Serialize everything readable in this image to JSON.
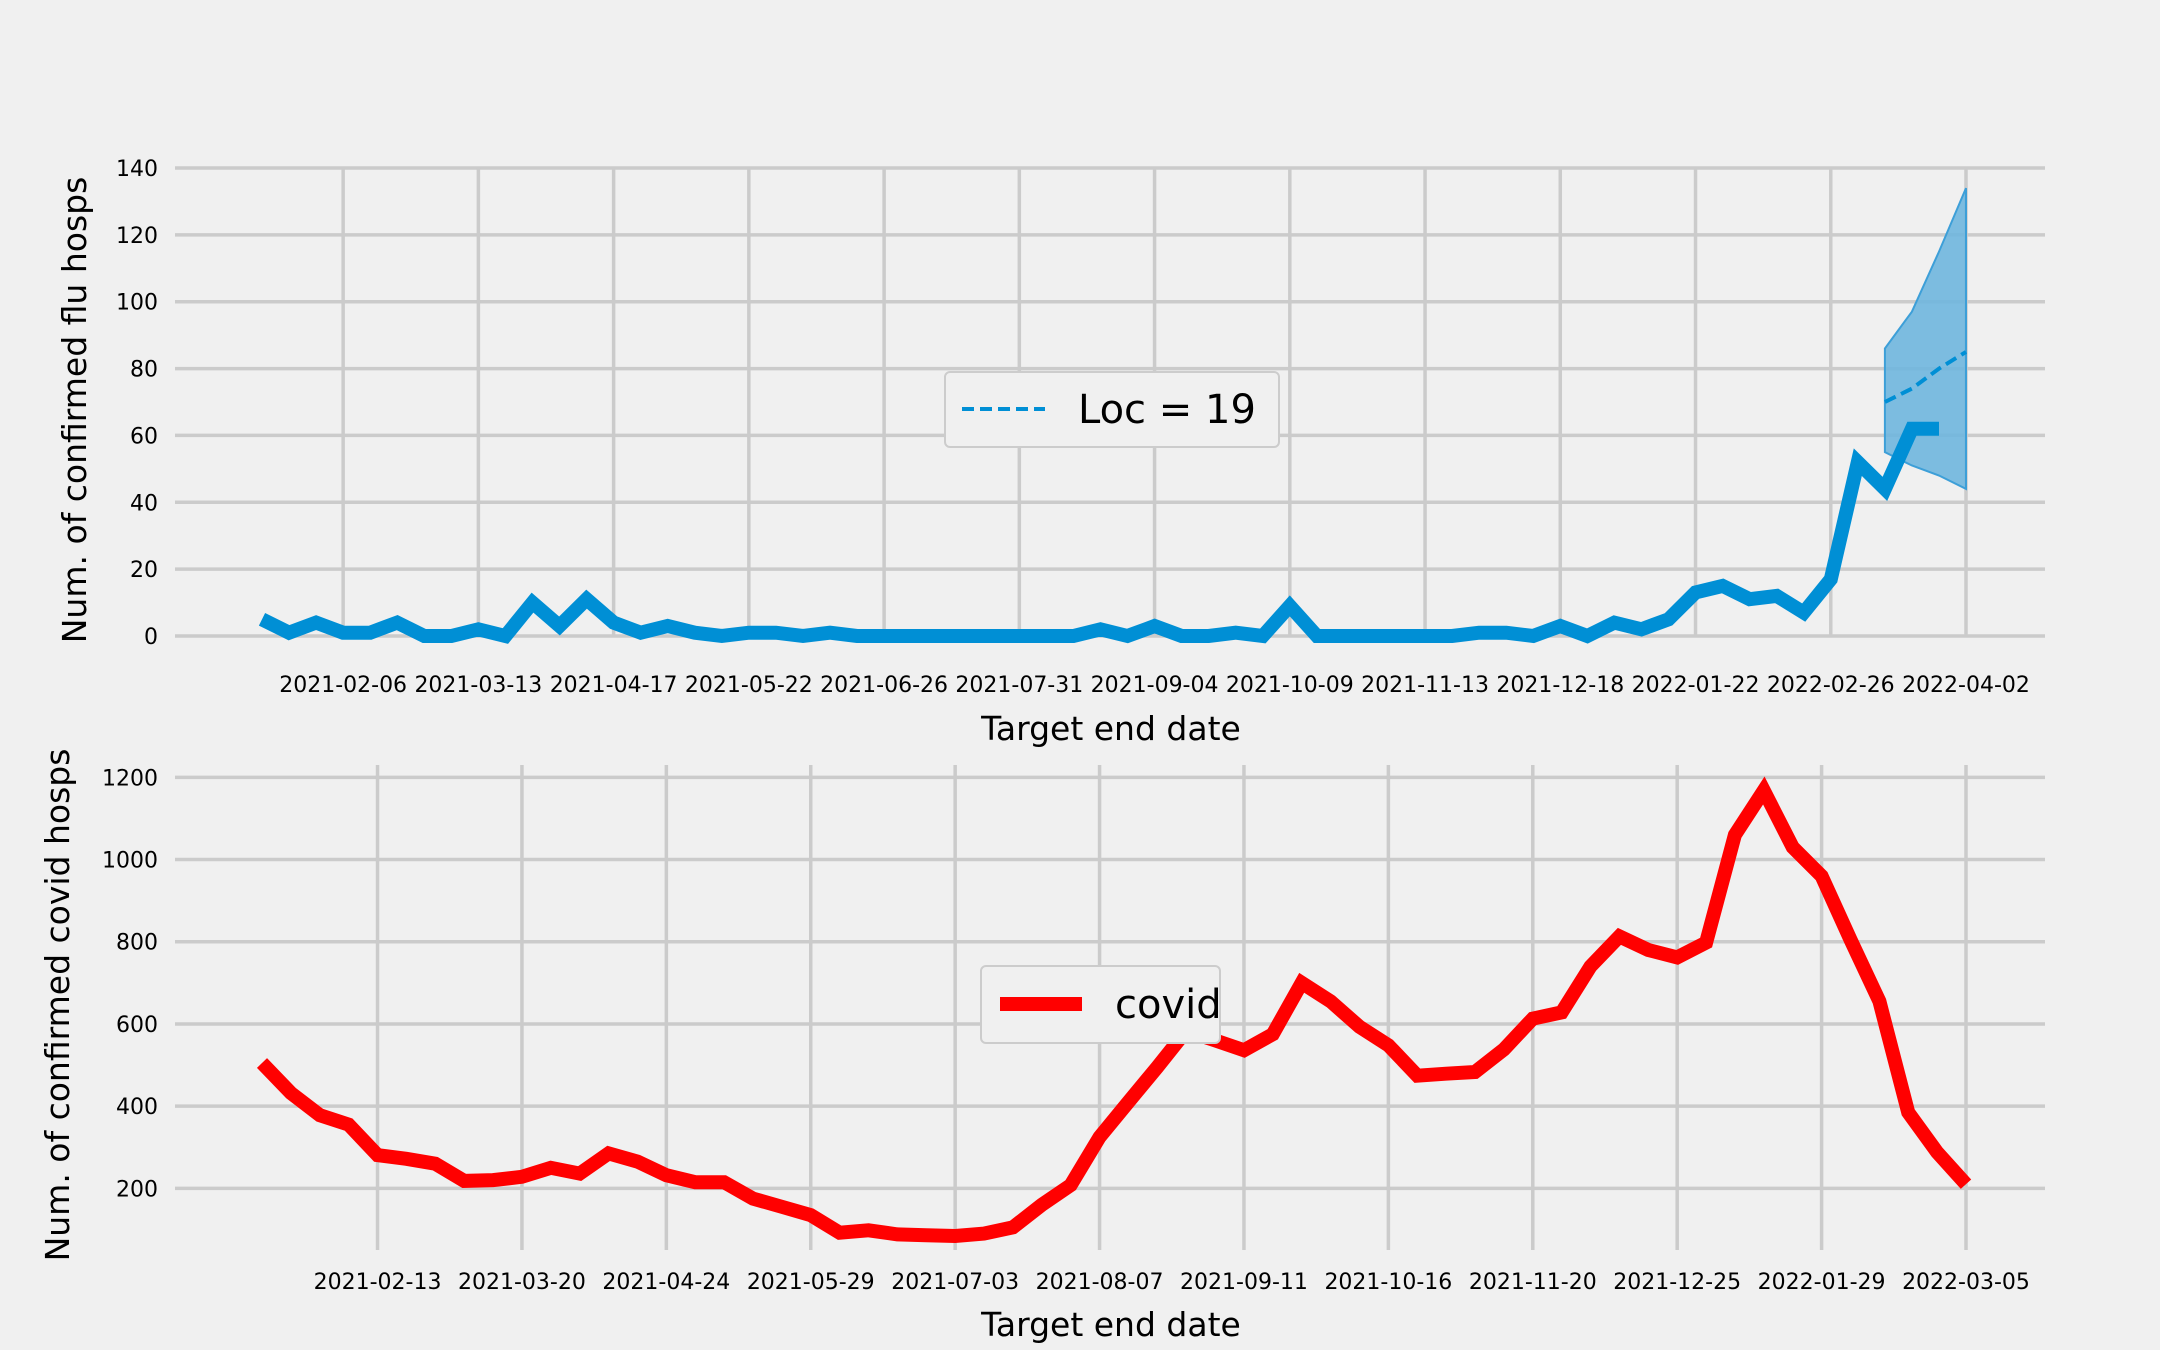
{
  "chart_data": [
    {
      "type": "line",
      "xlabel": "Target end date",
      "ylabel": "Num. of confirmed flu hosps",
      "ylim": [
        0,
        140
      ],
      "yticks": [
        0,
        20,
        40,
        60,
        80,
        100,
        120,
        140
      ],
      "x_start": "2021-01-16",
      "x_step_days": 7,
      "xticks": [
        "2021-02-06",
        "2021-03-13",
        "2021-04-17",
        "2021-05-22",
        "2021-06-26",
        "2021-07-31",
        "2021-09-04",
        "2021-10-09",
        "2021-11-13",
        "2021-12-18",
        "2022-01-22",
        "2022-02-26",
        "2022-04-02"
      ],
      "grid": true,
      "legend": {
        "position": "center",
        "entries": [
          "Loc = 19"
        ]
      },
      "colors": {
        "observed": "#008fd5",
        "forecast": "#008fd5",
        "band": "#6fb6de"
      },
      "series": [
        {
          "role": "observed",
          "values": [
            5,
            1,
            4,
            1,
            1,
            4,
            0,
            0,
            2,
            0,
            10,
            3,
            11,
            4,
            1,
            3,
            1,
            0,
            1,
            1,
            0,
            1,
            0,
            0,
            0,
            0,
            0,
            0,
            0,
            0,
            0,
            2,
            0,
            3,
            0,
            0,
            1,
            0,
            9,
            0,
            0,
            0,
            0,
            0,
            0,
            1,
            1,
            0,
            3,
            0,
            4,
            2,
            5,
            13,
            15,
            11,
            12,
            7,
            17,
            52,
            44,
            62,
            62
          ]
        },
        {
          "name": "Loc = 19",
          "role": "forecast",
          "x": [
            "2022-03-12",
            "2022-03-19",
            "2022-03-26",
            "2022-04-02"
          ],
          "values": [
            70,
            74,
            80,
            85
          ],
          "lower": [
            55,
            51,
            48,
            44
          ],
          "upper": [
            86,
            97,
            115,
            134
          ]
        }
      ]
    },
    {
      "type": "line",
      "xlabel": "Target end date",
      "ylabel": "Num. of confirmed covid hosps",
      "ylim": [
        50,
        1230
      ],
      "yticks": [
        200,
        400,
        600,
        800,
        1000,
        1200
      ],
      "x_start": "2021-01-16",
      "x_step_days": 7,
      "xticks": [
        "2021-02-13",
        "2021-03-20",
        "2021-04-24",
        "2021-05-29",
        "2021-07-03",
        "2021-08-07",
        "2021-09-11",
        "2021-10-16",
        "2021-11-20",
        "2021-12-25",
        "2022-01-29",
        "2022-03-05"
      ],
      "grid": true,
      "legend": {
        "position": "center",
        "entries": [
          "covid"
        ]
      },
      "colors": {
        "covid": "#ff0000"
      },
      "series": [
        {
          "name": "covid",
          "values": [
            505,
            432,
            378,
            355,
            281,
            272,
            260,
            218,
            220,
            228,
            250,
            236,
            285,
            265,
            232,
            215,
            215,
            175,
            155,
            135,
            92,
            98,
            88,
            86,
            84,
            90,
            105,
            160,
            208,
            325,
            410,
            495,
            583,
            560,
            536,
            575,
            700,
            655,
            593,
            548,
            474,
            479,
            483,
            538,
            613,
            628,
            740,
            813,
            780,
            762,
            798,
            1060,
            1168,
            1030,
            960,
            805,
            655,
            385,
            288,
            210
          ]
        }
      ]
    }
  ]
}
